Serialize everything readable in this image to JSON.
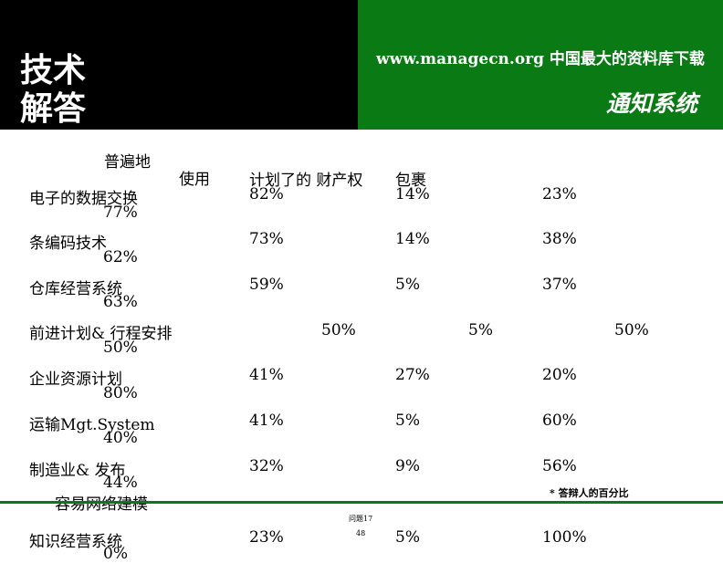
{
  "header": {
    "title_line1": "技术",
    "title_line2": "解答",
    "url_text": "www.managecn.org  中国最大的资料库下载",
    "subtitle": "通知系统"
  },
  "columns": {
    "h1": "普遍地",
    "h2": "使用",
    "h3": "计划了的 财产权",
    "h4": "包裹"
  },
  "rows": [
    {
      "name": "电子的数据交换",
      "c1": "82%",
      "c2": "14%",
      "c3": "23%",
      "sub": "77%"
    },
    {
      "name": "条编码技术",
      "c1": "73%",
      "c2": "14%",
      "c3": "38%",
      "sub": "62%"
    },
    {
      "name": "仓库经营系统",
      "c1": "59%",
      "c2": "5%",
      "c3": "37%",
      "sub": "63%"
    },
    {
      "name": "前进计划& 行程安排",
      "c1": "50%",
      "c2": "5%",
      "c3": "50%",
      "sub": "50%"
    },
    {
      "name": "企业资源计划",
      "c1": "41%",
      "c2": "27%",
      "c3": "20%",
      "sub": "80%"
    },
    {
      "name": "运输Mgt.System",
      "c1": "41%",
      "c2": "5%",
      "c3": "60%",
      "sub": "40%"
    },
    {
      "name": "制造业& 发布",
      "c1": "32%",
      "c2": "9%",
      "c3": "56%",
      "sub": "44%"
    },
    {
      "name": "知识经营系统",
      "c1": "23%",
      "c2": "5%",
      "c3": "100%",
      "sub": "0%"
    }
  ],
  "extra_label": "容易网络建模",
  "footnote": "* 答辩人的百分比",
  "question_label": "问题17",
  "page_number": "48"
}
